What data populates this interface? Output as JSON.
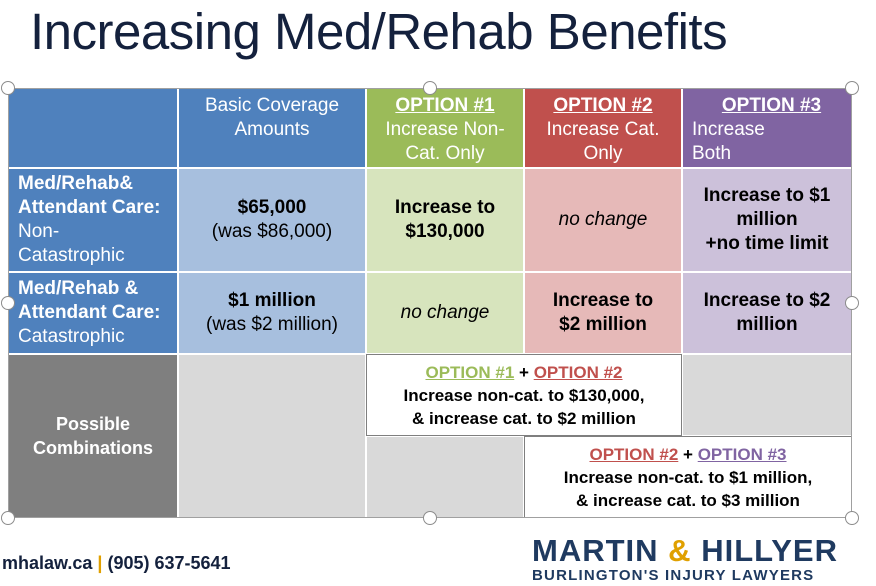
{
  "title": "Increasing Med/Rehab Benefits",
  "header": {
    "basic": [
      "Basic Coverage",
      "Amounts"
    ],
    "option1": {
      "name": "OPTION #1",
      "desc": [
        "Increase Non-",
        "Cat. Only"
      ]
    },
    "option2": {
      "name": "OPTION #2",
      "desc": [
        "Increase Cat.",
        "Only"
      ]
    },
    "option3": {
      "name": "OPTION #3",
      "desc": [
        "Increase",
        "Both"
      ]
    }
  },
  "rows": {
    "non_cat": {
      "label_bold": [
        "Med/Rehab&",
        "Attendant Care:"
      ],
      "label_plain": [
        "Non-",
        "Catastrophic"
      ],
      "basic_value": "$65,000",
      "basic_note": "(was $86,000)",
      "option1": [
        "Increase to",
        "$130,000"
      ],
      "option2": "no change",
      "option3": [
        "Increase to $1",
        "million",
        "+no time limit"
      ]
    },
    "cat": {
      "label_bold": [
        "Med/Rehab &",
        "Attendant Care:"
      ],
      "label_plain": [
        "Catastrophic"
      ],
      "basic_value": "$1 million",
      "basic_note": "(was $2 million)",
      "option1": "no change",
      "option2": [
        "Increase to",
        "$2 million"
      ],
      "option3": [
        "Increase to $2",
        "million"
      ]
    }
  },
  "combinations": {
    "label": [
      "Possible",
      "Combinations"
    ],
    "combo1": {
      "a": "OPTION #1",
      "plus": "+",
      "b": "OPTION #2",
      "lines": [
        "Increase non-cat. to $130,000,",
        "& increase cat. to $2 million"
      ]
    },
    "combo2": {
      "a": "OPTION #2",
      "plus": "+",
      "b": "OPTION #3",
      "lines": [
        "Increase non-cat. to $1 million,",
        "& increase cat. to $3 million"
      ]
    }
  },
  "footer": {
    "website": "mhalaw.ca",
    "separator": "|",
    "phone": "(905) 637-5641",
    "logo_left": "MARTIN",
    "logo_amp": "&",
    "logo_right": "HILLYER",
    "logo_tagline": "BURLINGTON'S INJURY LAWYERS"
  },
  "colors": {
    "title": "#14213d",
    "header_blue": "#4f81bd",
    "option1_green": "#9bbb59",
    "option2_red": "#c0504d",
    "option3_purple": "#8064a2",
    "combinations_gray": "#7f7f7f",
    "logo_navy": "#1f3a60",
    "logo_gold": "#e0a000"
  }
}
